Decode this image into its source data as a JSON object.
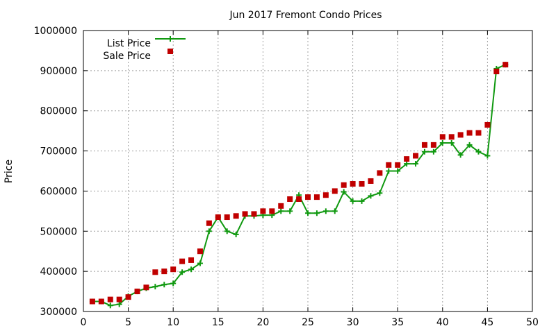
{
  "chart_data": {
    "type": "line",
    "title": "Jun 2017 Fremont Condo Prices",
    "xlabel": "",
    "ylabel": "Price",
    "xlim": [
      0,
      50
    ],
    "ylim": [
      300000,
      1000000
    ],
    "xticks": [
      "0",
      "5",
      "10",
      "15",
      "20",
      "25",
      "30",
      "35",
      "40",
      "45",
      "50"
    ],
    "yticks": [
      "300000",
      "400000",
      "500000",
      "600000",
      "700000",
      "800000",
      "900000",
      "1000000"
    ],
    "grid": true,
    "legend_position": "top-left",
    "series": [
      {
        "name": "List Price",
        "style": "line-with-plus-markers",
        "color": "#109910",
        "x": [
          1,
          2,
          3,
          4,
          5,
          6,
          7,
          8,
          9,
          10,
          11,
          12,
          13,
          14,
          15,
          16,
          17,
          18,
          19,
          20,
          21,
          22,
          23,
          24,
          25,
          26,
          27,
          28,
          29,
          30,
          31,
          32,
          33,
          34,
          35,
          36,
          37,
          38,
          39,
          40,
          41,
          42,
          43,
          44,
          45,
          46,
          47
        ],
        "values": [
          325000,
          325000,
          315000,
          318000,
          338000,
          350000,
          358000,
          362000,
          367000,
          370000,
          398000,
          405000,
          420000,
          500000,
          535000,
          500000,
          492000,
          538000,
          538000,
          540000,
          540000,
          550000,
          550000,
          590000,
          545000,
          545000,
          550000,
          550000,
          598000,
          575000,
          575000,
          588000,
          595000,
          650000,
          650000,
          668000,
          668000,
          698000,
          698000,
          720000,
          720000,
          690000,
          715000,
          698000,
          688000,
          905000,
          915000
        ]
      },
      {
        "name": "Sale Price",
        "style": "square-markers",
        "color": "#c00000",
        "x": [
          1,
          2,
          3,
          4,
          5,
          6,
          7,
          8,
          9,
          10,
          11,
          12,
          13,
          14,
          15,
          16,
          17,
          18,
          19,
          20,
          21,
          22,
          23,
          24,
          25,
          26,
          27,
          28,
          29,
          30,
          31,
          32,
          33,
          34,
          35,
          36,
          37,
          38,
          39,
          40,
          41,
          42,
          43,
          44,
          45,
          46,
          47
        ],
        "values": [
          325000,
          325000,
          330000,
          330000,
          336000,
          350000,
          360000,
          398000,
          400000,
          405000,
          425000,
          428000,
          450000,
          520000,
          535000,
          535000,
          538000,
          543000,
          543000,
          550000,
          550000,
          563000,
          580000,
          580000,
          585000,
          585000,
          590000,
          600000,
          615000,
          618000,
          618000,
          625000,
          645000,
          665000,
          665000,
          680000,
          688000,
          715000,
          715000,
          735000,
          735000,
          740000,
          745000,
          745000,
          765000,
          898000,
          915000
        ]
      }
    ]
  }
}
